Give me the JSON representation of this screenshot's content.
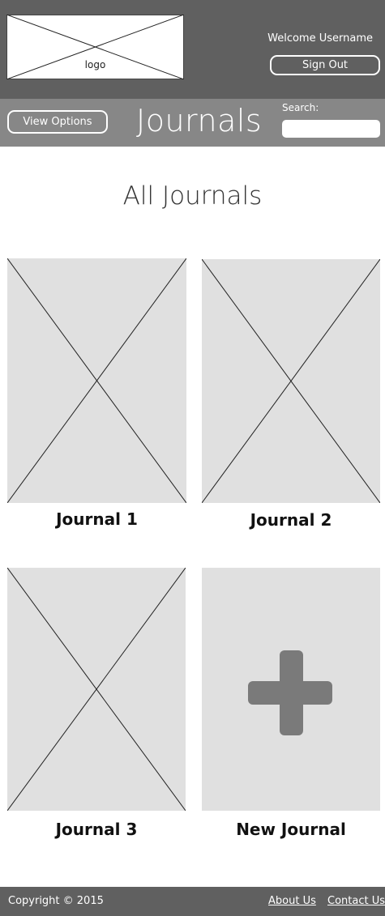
{
  "header": {
    "logo_text": "logo",
    "welcome": "Welcome Username",
    "sign_out": "Sign Out"
  },
  "navbar": {
    "view_options": "View Options",
    "title": "Journals",
    "search_label": "Search:",
    "search_value": ""
  },
  "main": {
    "title": "All Journals",
    "journals": [
      {
        "label": "Journal 1"
      },
      {
        "label": "Journal 2"
      },
      {
        "label": "Journal 3"
      }
    ],
    "new_journal": {
      "label": "New Journal",
      "icon": "plus-icon"
    }
  },
  "footer": {
    "copyright": "Copyright © 2015",
    "links": [
      "About Us",
      "Contact Us"
    ]
  },
  "colors": {
    "header_bg": "#606060",
    "navbar_bg": "#878787",
    "placeholder_bg": "#e0e0e0",
    "plus": "#7a7a7a"
  }
}
